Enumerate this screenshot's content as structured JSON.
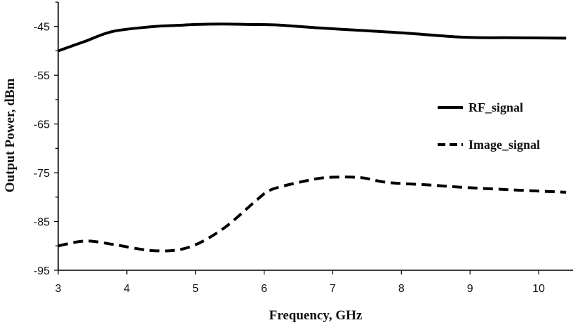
{
  "chart_data": {
    "type": "line",
    "xlabel": "Frequency, GHz",
    "ylabel": "Output Power, dBm",
    "xlim": [
      3,
      10.5
    ],
    "ylim": [
      -95,
      -40
    ],
    "xticks": [
      3,
      4,
      5,
      6,
      7,
      8,
      9,
      10
    ],
    "yticks": [
      -45,
      -55,
      -65,
      -75,
      -85,
      -95
    ],
    "grid": false,
    "legend_position": "right",
    "series": [
      {
        "name": "RF_signal",
        "style": "solid",
        "color": "#000000",
        "x": [
          3.0,
          3.4,
          3.8,
          4.4,
          4.7,
          5.0,
          5.4,
          5.8,
          6.2,
          6.8,
          7.4,
          8.0,
          8.9,
          9.6,
          10.4
        ],
        "y": [
          -50.0,
          -48.0,
          -46.0,
          -45.0,
          -44.8,
          -44.6,
          -44.5,
          -44.6,
          -44.7,
          -45.3,
          -45.8,
          -46.3,
          -47.2,
          -47.3,
          -47.4
        ]
      },
      {
        "name": "Image_signal",
        "style": "dashed",
        "color": "#000000",
        "x": [
          3.0,
          3.4,
          3.8,
          4.4,
          4.9,
          5.4,
          5.9,
          6.1,
          6.5,
          6.9,
          7.4,
          7.8,
          8.4,
          8.9,
          9.6,
          10.4
        ],
        "y": [
          -90.0,
          -89.0,
          -89.7,
          -91.0,
          -90.3,
          -86.5,
          -80.5,
          -78.5,
          -77.0,
          -76.0,
          -76.0,
          -77.0,
          -77.5,
          -78.0,
          -78.5,
          -79.0
        ]
      }
    ]
  }
}
